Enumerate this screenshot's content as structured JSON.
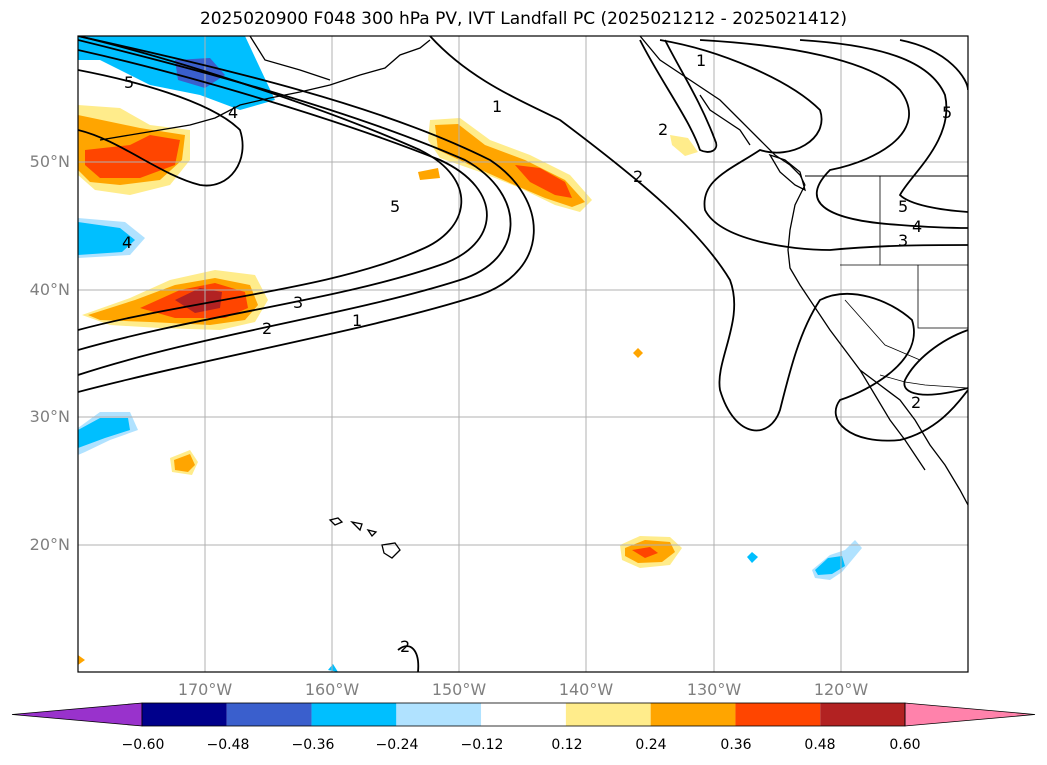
{
  "title": "2025020900 F048 300 hPa PV, IVT Landfall PC (2025021212 - 2025021412)",
  "lat_labels": [
    "50°N",
    "40°N",
    "30°N",
    "20°N"
  ],
  "lon_labels": [
    "170°W",
    "160°W",
    "150°W",
    "140°W",
    "130°W",
    "120°W"
  ],
  "colorbar": {
    "ticks": [
      "−0.60",
      "−0.48",
      "−0.36",
      "−0.24",
      "−0.12",
      "0.12",
      "0.24",
      "0.36",
      "0.48",
      "0.60"
    ],
    "colors": [
      "#9932CC",
      "#00008B",
      "#3A5FCD",
      "#00BFFF",
      "#B0E2FF",
      "#FFFFFF",
      "#FFEC8B",
      "#FFA500",
      "#FF4500",
      "#B22222",
      "#FF82AB"
    ]
  },
  "contour_labels": [
    "5",
    "4",
    "1",
    "2",
    "2",
    "5",
    "3",
    "2",
    "1",
    "4",
    "1",
    "2",
    "5",
    "4",
    "3",
    "2",
    "5"
  ]
}
